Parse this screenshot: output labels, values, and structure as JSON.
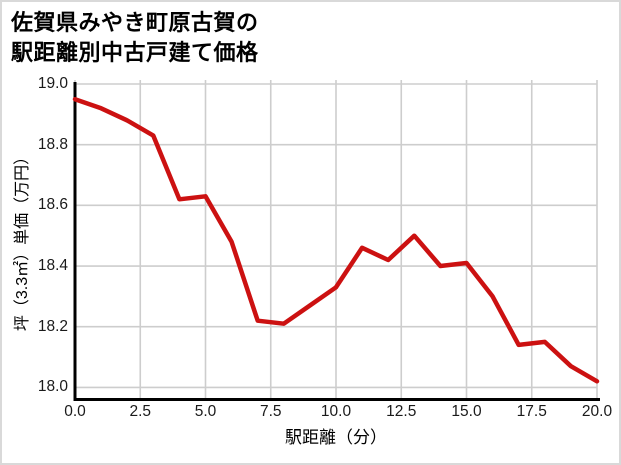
{
  "chart_data": {
    "type": "line",
    "title": "佐賀県みやき町原古賀の駅距離別中古戸建て価格",
    "title_lines": [
      "佐賀県みやき町原古賀の",
      "駅距離別中古戸建て価格"
    ],
    "xlabel": "駅距離（分）",
    "ylabel": "坪（3.3㎡）単価（万円）",
    "x": [
      0,
      1,
      2,
      3,
      4,
      5,
      6,
      7,
      8,
      9,
      10,
      11,
      12,
      13,
      14,
      15,
      16,
      17,
      18,
      19,
      20
    ],
    "y": [
      18.95,
      18.92,
      18.88,
      18.83,
      18.62,
      18.63,
      18.48,
      18.22,
      18.21,
      18.27,
      18.33,
      18.46,
      18.42,
      18.5,
      18.4,
      18.41,
      18.3,
      18.14,
      18.15,
      18.07,
      18.02
    ],
    "xlim": [
      0,
      20
    ],
    "ylim": [
      18.0,
      19.0
    ],
    "xticks": [
      0,
      2.5,
      5,
      7.5,
      10,
      12.5,
      15,
      17.5,
      20
    ],
    "xtick_labels": [
      "0.0",
      "2.5",
      "5.0",
      "7.5",
      "10.0",
      "12.5",
      "15.0",
      "17.5",
      "20.0"
    ],
    "yticks": [
      19.0,
      18.8,
      18.6,
      18.4,
      18.2,
      18.0
    ],
    "ytick_labels": [
      "19.0",
      "18.8",
      "18.6",
      "18.4",
      "18.2",
      "18.0"
    ],
    "grid": true,
    "legend": false,
    "line_color": "#cc1111",
    "grid_color": "#cdcdcd",
    "axis_color": "#000000",
    "tick_label_color": "#1a1a1a",
    "background_color": "#ffffff",
    "border_color": "#d9d9d9"
  }
}
